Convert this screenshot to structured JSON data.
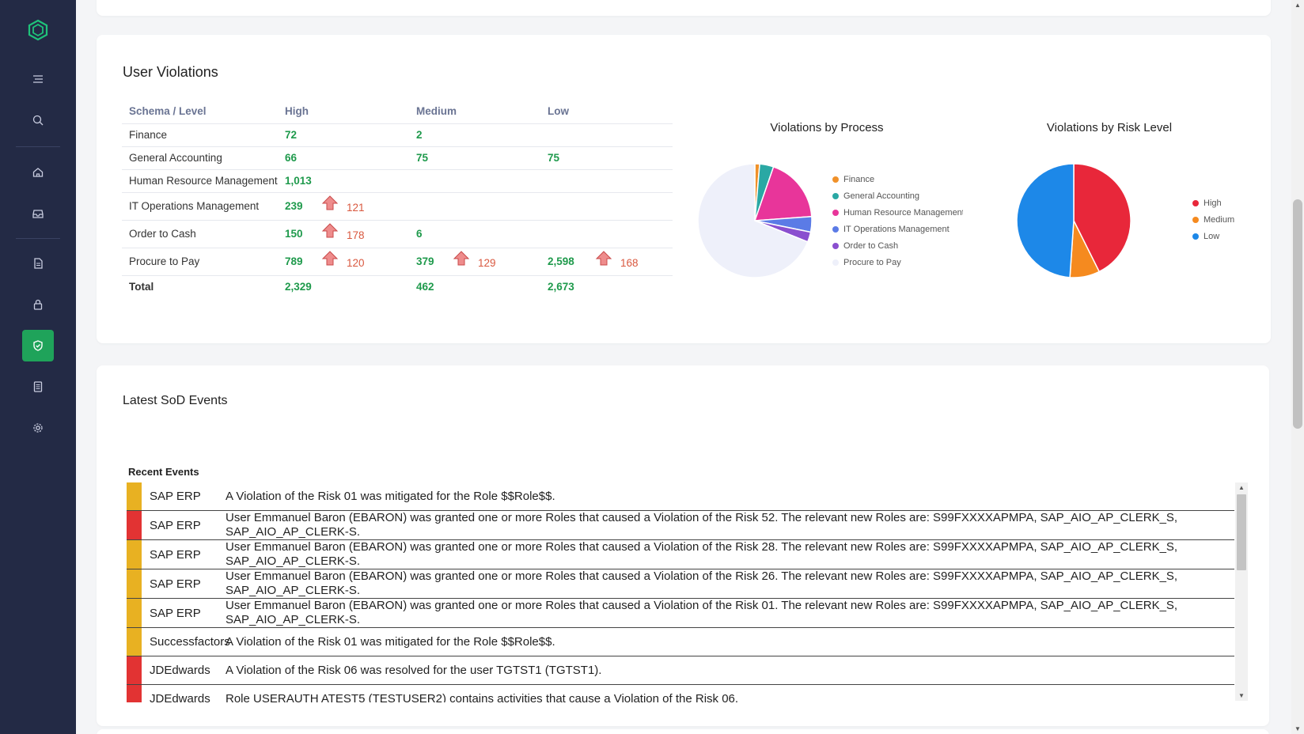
{
  "sidebar": {
    "items": [
      {
        "name": "menu-icon"
      },
      {
        "name": "search-icon"
      },
      {
        "name": "home-icon"
      },
      {
        "name": "inbox-icon"
      },
      {
        "name": "document-icon"
      },
      {
        "name": "lock-icon"
      },
      {
        "name": "shield-icon",
        "active": true
      },
      {
        "name": "report-icon"
      },
      {
        "name": "gear-icon"
      }
    ],
    "accent": "#1fa35a",
    "background": "#232a45"
  },
  "user_violations": {
    "title": "User Violations",
    "columns": [
      "Schema / Level",
      "High",
      "Medium",
      "Low"
    ],
    "rows": [
      {
        "schema": "Finance",
        "high": "72",
        "medium": "2",
        "low": ""
      },
      {
        "schema": "General Accounting",
        "high": "66",
        "medium": "75",
        "low": "75"
      },
      {
        "schema": "Human Resource Management",
        "high": "1,013",
        "medium": "",
        "low": ""
      },
      {
        "schema": "IT Operations Management",
        "high": "239",
        "high_trend": "121",
        "medium": "",
        "low": ""
      },
      {
        "schema": "Order to Cash",
        "high": "150",
        "high_trend": "178",
        "medium": "6",
        "low": ""
      },
      {
        "schema": "Procure to Pay",
        "high": "789",
        "high_trend": "120",
        "medium": "379",
        "medium_trend": "129",
        "low": "2,598",
        "low_trend": "168"
      }
    ],
    "total": {
      "label": "Total",
      "high": "2,329",
      "medium": "462",
      "low": "2,673"
    }
  },
  "chart_data": [
    {
      "type": "pie",
      "title": "Violations by Process",
      "categories": [
        "Finance",
        "General Accounting",
        "Human Resource Management",
        "IT Operations Management",
        "Order to Cash",
        "Procure to Pay"
      ],
      "values": [
        74,
        216,
        1013,
        239,
        156,
        3766
      ],
      "colors": [
        "#f0912a",
        "#2aa8a4",
        "#e8359a",
        "#5b7be6",
        "#8a4fcf",
        "#eef0fa"
      ],
      "legend": "right"
    },
    {
      "type": "pie",
      "title": "Violations by Risk Level",
      "categories": [
        "High",
        "Medium",
        "Low"
      ],
      "values": [
        2329,
        462,
        2673
      ],
      "colors": [
        "#e8273a",
        "#f58a1f",
        "#1d88e8"
      ],
      "legend": "right"
    }
  ],
  "sod": {
    "title": "Latest SoD Events",
    "recent_label": "Recent Events",
    "events": [
      {
        "severity": "#e8b122",
        "source": "SAP ERP",
        "message": "A Violation of the Risk 01 was mitigated for the Role $$Role$$."
      },
      {
        "severity": "#e23333",
        "source": "SAP ERP",
        "message": "User Emmanuel Baron (EBARON) was granted one or more Roles that caused a Violation of the Risk 52. The relevant new Roles are: S99FXXXXAPMPA, SAP_AIO_AP_CLERK_S, SAP_AIO_AP_CLERK-S."
      },
      {
        "severity": "#e8b122",
        "source": "SAP ERP",
        "message": "User Emmanuel Baron (EBARON) was granted one or more Roles that caused a Violation of the Risk 28. The relevant new Roles are: S99FXXXXAPMPA, SAP_AIO_AP_CLERK_S, SAP_AIO_AP_CLERK-S."
      },
      {
        "severity": "#e8b122",
        "source": "SAP ERP",
        "message": "User Emmanuel Baron (EBARON) was granted one or more Roles that caused a Violation of the Risk 26. The relevant new Roles are: S99FXXXXAPMPA, SAP_AIO_AP_CLERK_S, SAP_AIO_AP_CLERK-S."
      },
      {
        "severity": "#e8b122",
        "source": "SAP ERP",
        "message": "User Emmanuel Baron (EBARON) was granted one or more Roles that caused a Violation of the Risk 01. The relevant new Roles are: S99FXXXXAPMPA, SAP_AIO_AP_CLERK_S, SAP_AIO_AP_CLERK-S."
      },
      {
        "severity": "#e8b122",
        "source": "Successfactors",
        "message": "A Violation of the Risk 01 was mitigated for the Role $$Role$$."
      },
      {
        "severity": "#e23333",
        "source": "JDEdwards",
        "message": "A Violation of the Risk 06 was resolved for the user TGTST1 (TGTST1)."
      },
      {
        "severity": "#e23333",
        "source": "JDEdwards",
        "message": "Role USERAUTH ATEST5 (TESTUSER2) contains activities that cause a Violation of the Risk 06."
      }
    ]
  }
}
